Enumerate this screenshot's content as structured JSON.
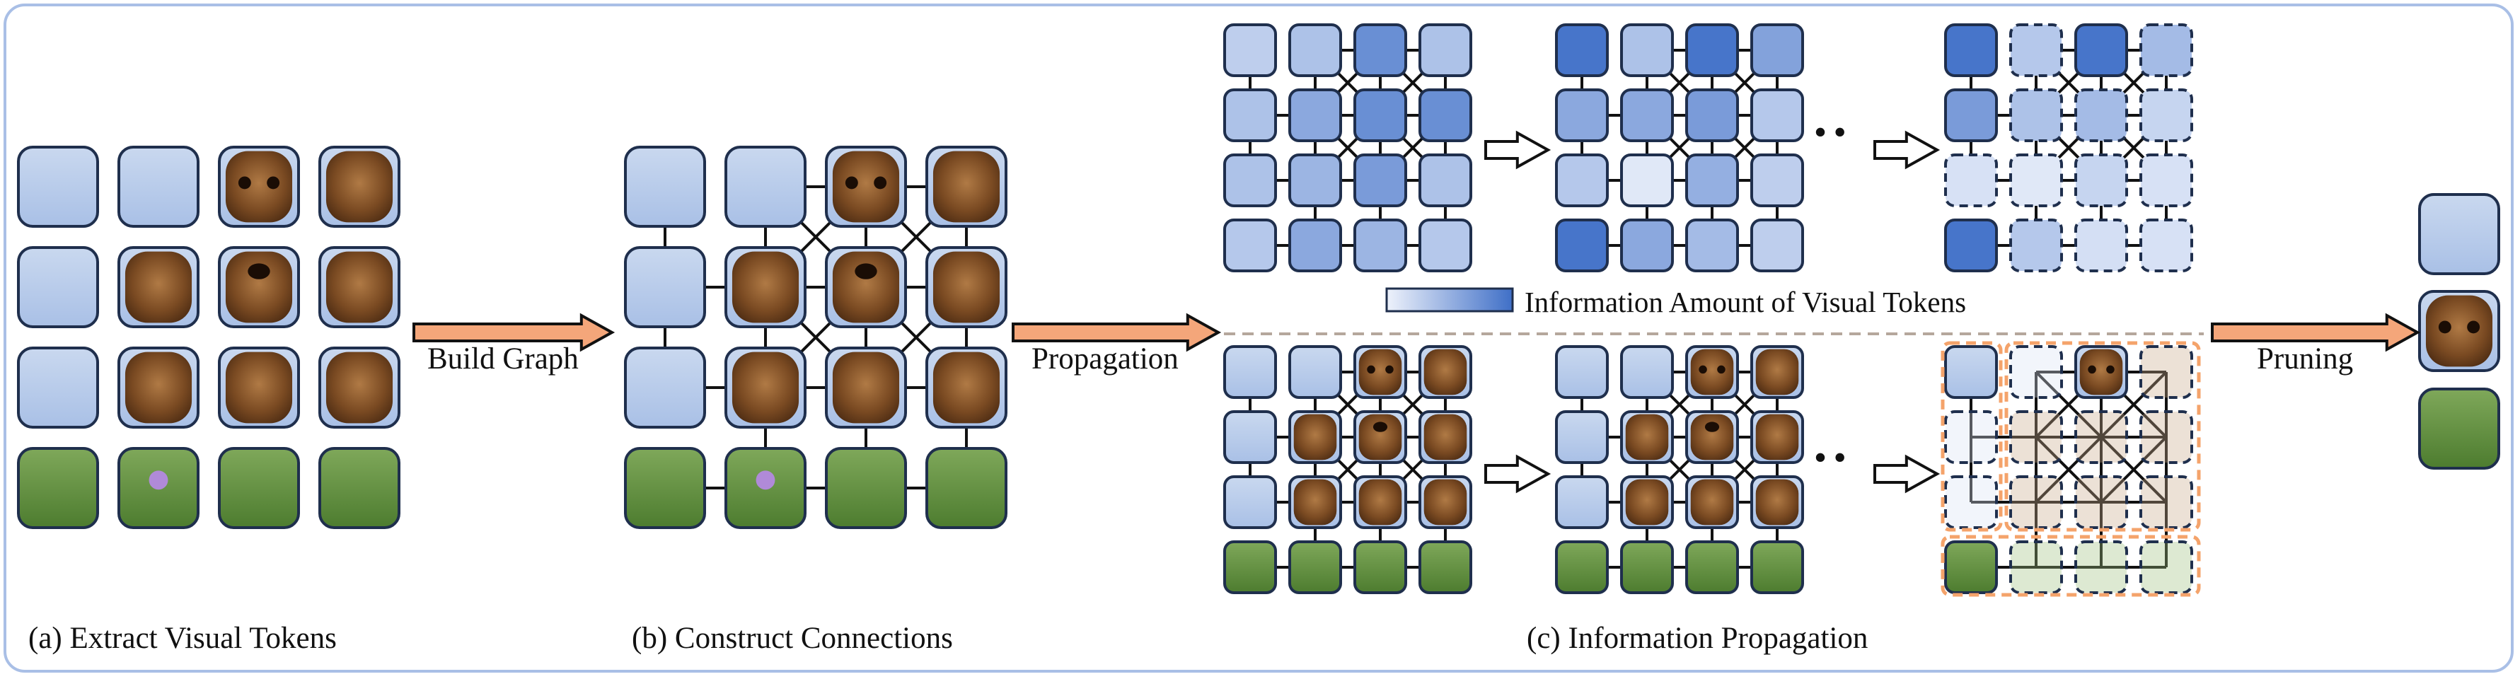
{
  "captions": {
    "a": "(a) Extract Visual Tokens",
    "b": "(b) Construct Connections",
    "c": "(c) Information Propagation"
  },
  "arrows": {
    "build": "Build Graph",
    "propagation": "Propagation",
    "pruning": "Pruning"
  },
  "legend": {
    "label": "Information Amount of Visual Tokens",
    "color_low": "#eef2fb",
    "color_high": "#3f6fc7"
  },
  "ellipsis": "• •",
  "colors": {
    "token_blue": "#b9cbec",
    "token_grass": "#5c8f3c",
    "token_dog": "#7a4a22",
    "arrow_fill": "#f4a67a",
    "pruned_box": "#f4a36b",
    "frame": "#a9bfe6"
  },
  "scene": {
    "row_types": [
      "sky",
      "sky",
      "sky",
      "grass"
    ],
    "dog_columns": [
      1,
      2,
      3
    ]
  },
  "information_levels": {
    "top_stage1": [
      [
        0.25,
        0.35,
        0.75,
        0.35
      ],
      [
        0.35,
        0.55,
        0.75,
        0.75
      ],
      [
        0.35,
        0.45,
        0.65,
        0.35
      ],
      [
        0.3,
        0.55,
        0.45,
        0.3
      ]
    ],
    "top_stage2": [
      [
        0.95,
        0.35,
        0.95,
        0.6
      ],
      [
        0.55,
        0.55,
        0.65,
        0.3
      ],
      [
        0.3,
        0.05,
        0.5,
        0.25
      ],
      [
        0.95,
        0.55,
        0.4,
        0.25
      ]
    ],
    "top_stage3": [
      [
        0.95,
        0.3,
        0.95,
        0.4
      ],
      [
        0.65,
        0.35,
        0.4,
        0.2
      ],
      [
        0.1,
        0.05,
        0.2,
        0.1
      ],
      [
        0.95,
        0.3,
        0.12,
        0.1
      ]
    ]
  },
  "kept_tokens": {
    "top_stage3": [
      [
        1,
        0,
        1,
        0
      ],
      [
        1,
        0,
        0,
        0
      ],
      [
        0,
        0,
        0,
        0
      ],
      [
        1,
        0,
        0,
        0
      ]
    ],
    "bottom_stage3": [
      [
        1,
        0,
        1,
        0
      ],
      [
        0,
        0,
        0,
        0
      ],
      [
        0,
        0,
        0,
        0
      ],
      [
        1,
        0,
        0,
        0
      ]
    ]
  }
}
